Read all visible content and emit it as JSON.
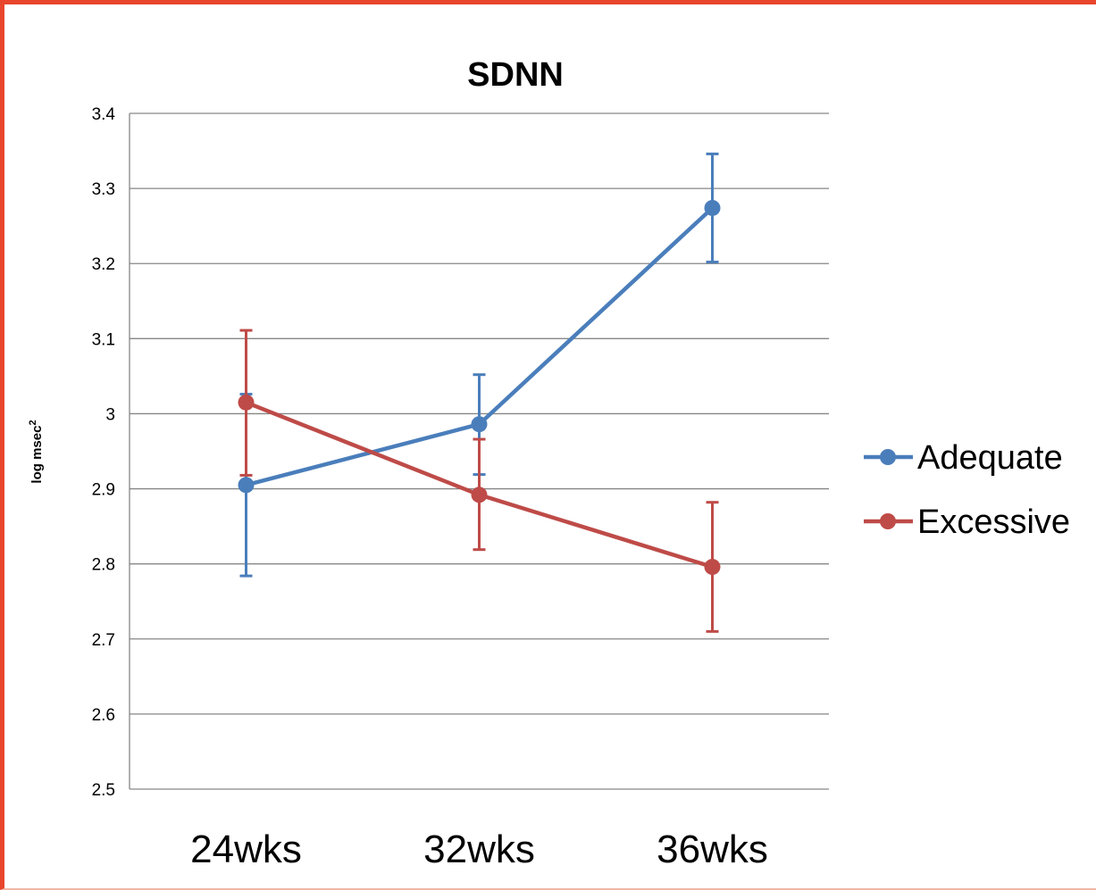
{
  "chart_data": {
    "type": "line",
    "title": "SDNN",
    "xlabel": "",
    "ylabel": "log msec",
    "ylabel_superscript": "2",
    "categories": [
      "24wks",
      "32wks",
      "36wks"
    ],
    "ylim": [
      2.5,
      3.4
    ],
    "yticks": [
      "2.5",
      "2.6",
      "2.7",
      "2.8",
      "2.9",
      "3",
      "3.1",
      "3.2",
      "3.3",
      "3.4"
    ],
    "grid": true,
    "legend_position": "right",
    "series": [
      {
        "name": "Adequate",
        "color": "#4a7ebb",
        "values": [
          2.905,
          2.986,
          3.274
        ],
        "error_low": [
          2.784,
          2.919,
          3.202
        ],
        "error_high": [
          3.026,
          3.052,
          3.346
        ]
      },
      {
        "name": "Excessive",
        "color": "#be4b48",
        "values": [
          3.015,
          2.892,
          2.796
        ],
        "error_low": [
          2.918,
          2.819,
          2.71
        ],
        "error_high": [
          3.111,
          2.966,
          2.882
        ]
      }
    ]
  }
}
